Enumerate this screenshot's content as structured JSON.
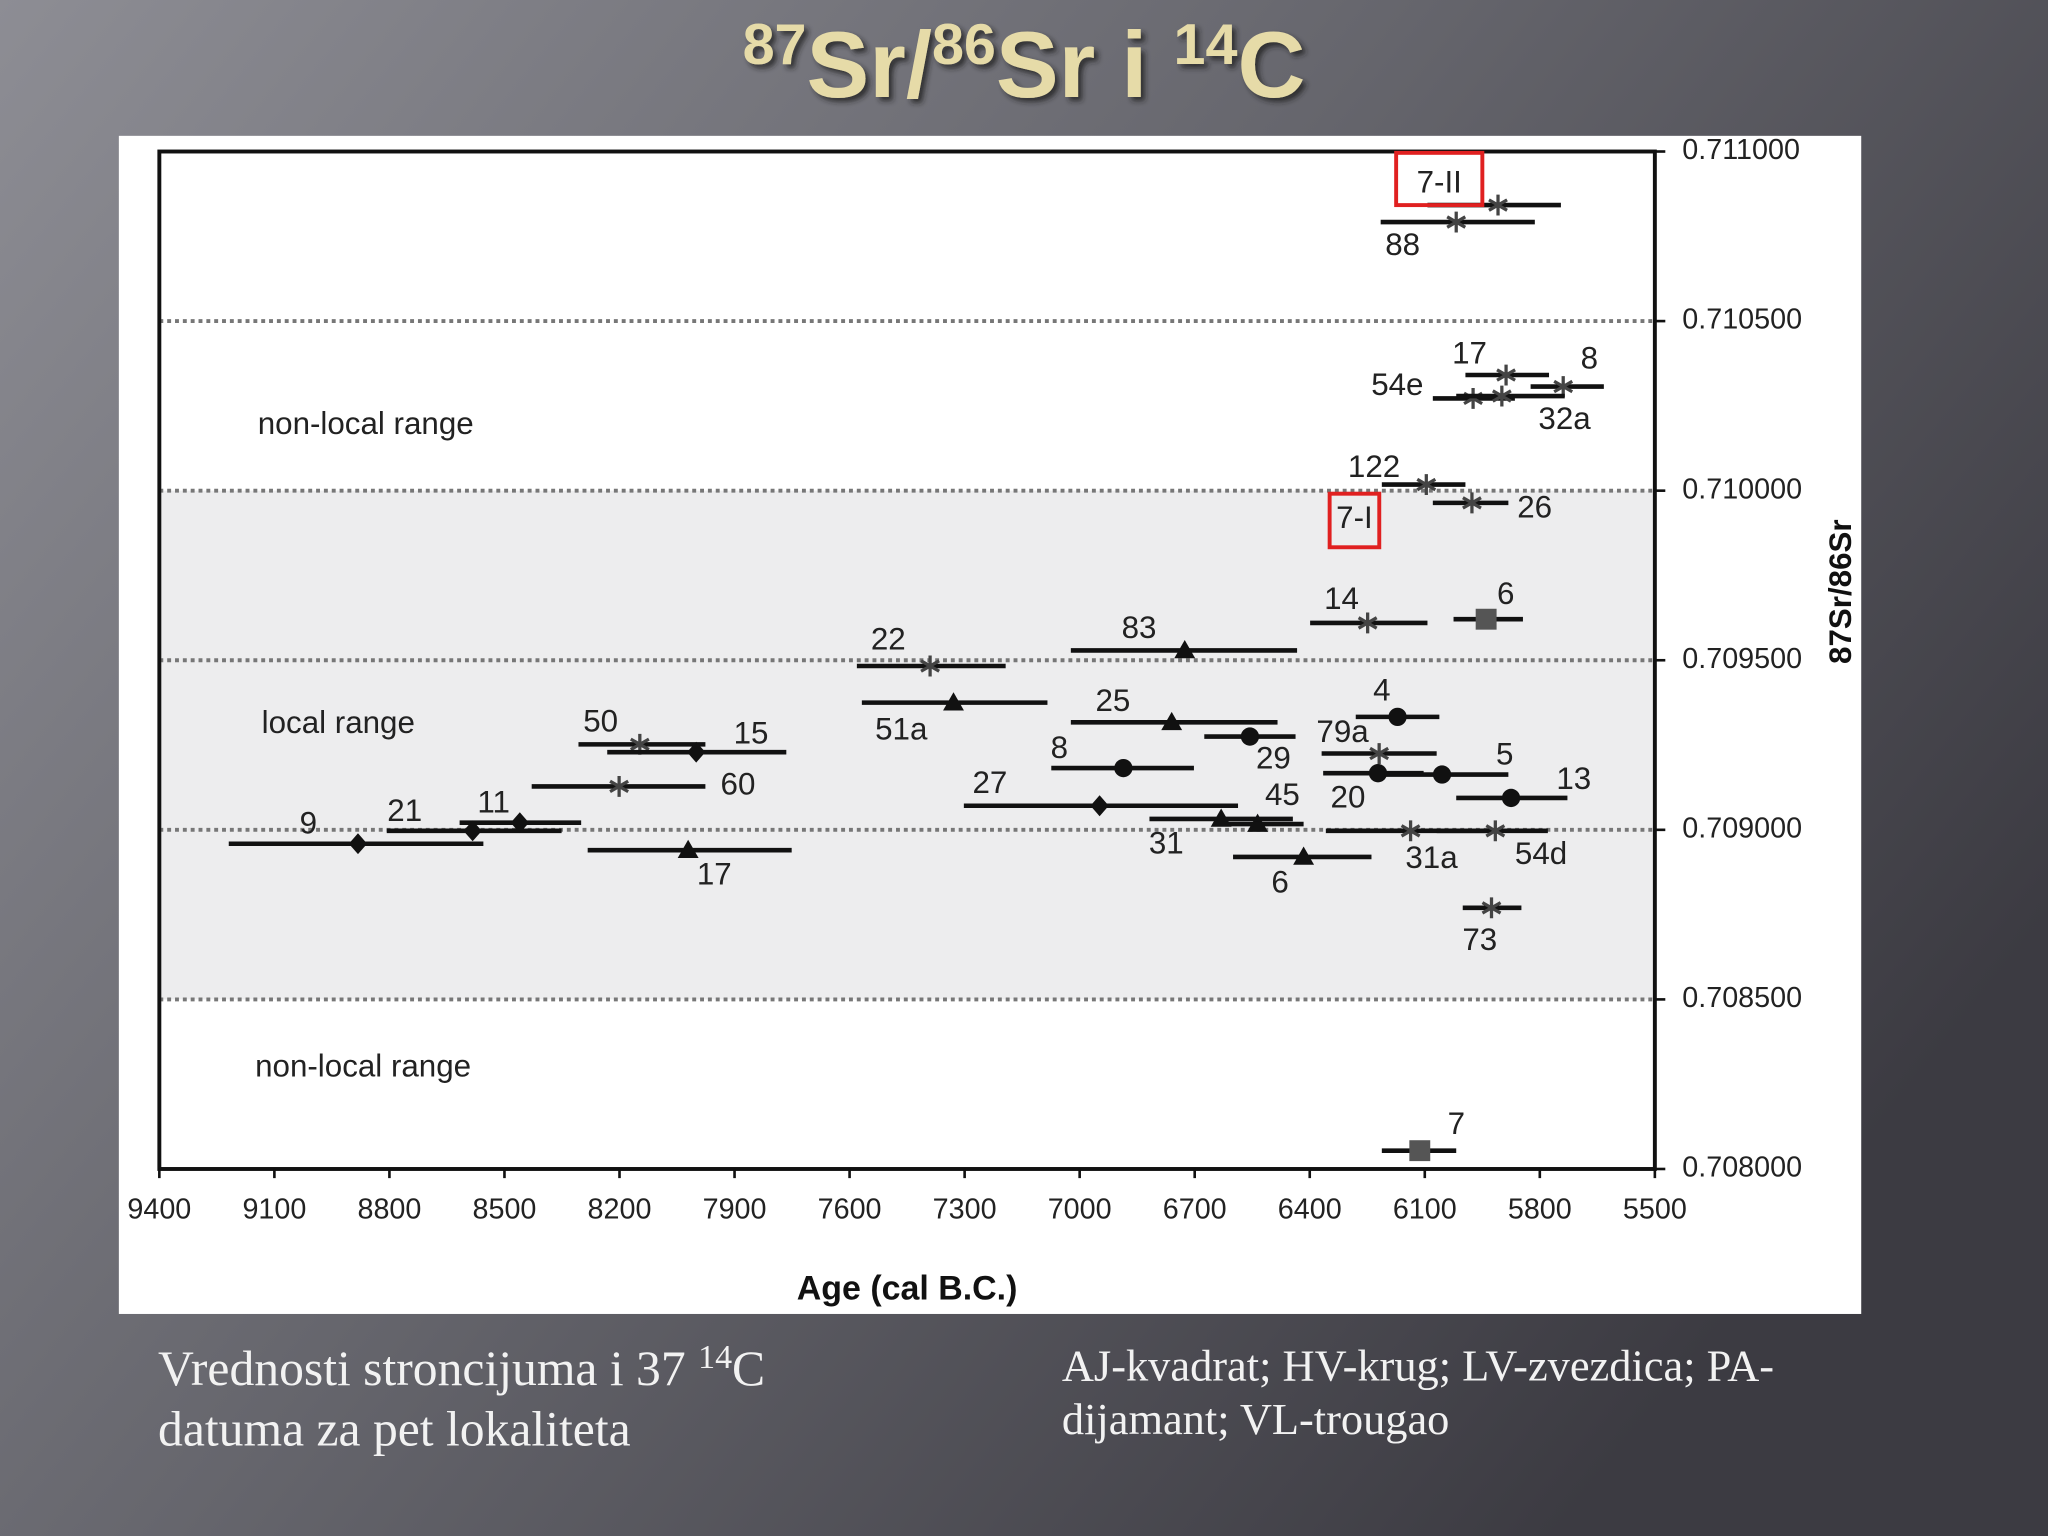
{
  "title": [
    "87",
    "Sr/",
    "86",
    "Sr i ",
    "14",
    "C"
  ],
  "caption_left": {
    "line1": [
      "Vrednosti stroncijuma i 37 ",
      "14",
      "C"
    ],
    "line2": "datuma za pet lokaliteta"
  },
  "caption_right": [
    "AJ-kvadrat; HV-krug; LV-zvezdica; PA-",
    "dijamant; VL-trougao"
  ],
  "chart_data": {
    "type": "scatter",
    "xlabel": "Age (cal B.C.)",
    "ylabel": "87Sr/86Sr",
    "xlim": [
      9400,
      5500
    ],
    "xticks": [
      9400,
      9100,
      8800,
      8500,
      8200,
      7900,
      7600,
      7300,
      7000,
      6700,
      6400,
      6100,
      5800,
      5500
    ],
    "ylim": [
      0.708,
      0.711
    ],
    "yticks": [
      {
        "value": 0.708,
        "label": "0.708000"
      },
      {
        "value": 0.7085,
        "label": "0.708500"
      },
      {
        "value": 0.709,
        "label": "0.709000"
      },
      {
        "value": 0.7095,
        "label": "0.709500"
      },
      {
        "value": 0.71,
        "label": "0.710000"
      },
      {
        "value": 0.7105,
        "label": "0.710500"
      },
      {
        "value": 0.711,
        "label": "0.711000"
      }
    ],
    "grid_lines": [
      0.7085,
      0.709,
      0.7095,
      0.71,
      0.7105
    ],
    "shaded_band": [
      0.7085,
      0.71
    ],
    "annotations": [
      {
        "text": "non-local range"
      },
      {
        "text": "local range"
      },
      {
        "text": "non-local range"
      },
      {
        "text": "7-I",
        "highlight": true
      }
    ],
    "points": [
      {
        "label": "7-II",
        "marker": "star",
        "x": 5909,
        "xrange": [
          6093,
          5745
        ],
        "y": 0.710842,
        "highlight": true
      },
      {
        "label": "88",
        "marker": "star",
        "x": 6018,
        "xrange": [
          6215,
          5813
        ],
        "y": 0.710792
      },
      {
        "label": "17",
        "marker": "star",
        "x": 5888,
        "xrange": [
          5994,
          5776
        ],
        "y": 0.710341
      },
      {
        "label": "8",
        "marker": "star",
        "x": 5739,
        "xrange": [
          5824,
          5633
        ],
        "y": 0.710307
      },
      {
        "label": "54e",
        "marker": "star",
        "x": 5974,
        "xrange": [
          6079,
          5865
        ],
        "y": 0.710272
      },
      {
        "label": "32a",
        "marker": "star",
        "x": 5899,
        "xrange": [
          6018,
          5735
        ],
        "y": 0.710279
      },
      {
        "label": "122",
        "marker": "star",
        "x": 6096,
        "xrange": [
          6212,
          5994
        ],
        "y": 0.710018
      },
      {
        "label": "26",
        "marker": "star",
        "x": 5977,
        "xrange": [
          6079,
          5882
        ],
        "y": 0.709964
      },
      {
        "label": "14",
        "marker": "star",
        "x": 6249,
        "xrange": [
          6399,
          6093
        ],
        "y": 0.70961
      },
      {
        "label": "6",
        "marker": "square",
        "x": 5940,
        "xrange": [
          6025,
          5844
        ],
        "y": 0.709621
      },
      {
        "label": "22",
        "marker": "star",
        "x": 7390,
        "xrange": [
          7581,
          7193
        ],
        "y": 0.709483
      },
      {
        "label": "83",
        "marker": "triangle",
        "x": 6726,
        "xrange": [
          7023,
          6433
        ],
        "y": 0.709529
      },
      {
        "label": "51a",
        "marker": "triangle",
        "x": 7329,
        "xrange": [
          7568,
          7084
        ],
        "y": 0.709375
      },
      {
        "label": "25",
        "marker": "triangle",
        "x": 6760,
        "xrange": [
          7023,
          6484
        ],
        "y": 0.709317
      },
      {
        "label": "4",
        "marker": "circle",
        "x": 6171,
        "xrange": [
          6280,
          6062
        ],
        "y": 0.709333
      },
      {
        "label": "29",
        "marker": "circle",
        "x": 6556,
        "xrange": [
          6675,
          6437
        ],
        "y": 0.709275
      },
      {
        "label": "79a",
        "marker": "star",
        "x": 6219,
        "xrange": [
          6369,
          6069
        ],
        "y": 0.709225
      },
      {
        "label": "8",
        "marker": "circle",
        "x": 6886,
        "xrange": [
          7074,
          6702
        ],
        "y": 0.709182
      },
      {
        "label": "20",
        "marker": "circle",
        "x": 6222,
        "xrange": [
          6365,
          6103
        ],
        "y": 0.709167
      },
      {
        "label": "5",
        "marker": "circle",
        "x": 6055,
        "xrange": [
          6205,
          5882
        ],
        "y": 0.709163
      },
      {
        "label": "13",
        "marker": "circle",
        "x": 5875,
        "xrange": [
          6018,
          5728
        ],
        "y": 0.709094
      },
      {
        "label": "27",
        "marker": "diamond",
        "x": 6948,
        "xrange": [
          7302,
          6587
        ],
        "y": 0.709071
      },
      {
        "label": "45",
        "marker": "triangle",
        "x": 6536,
        "xrange": [
          6648,
          6416
        ],
        "y": 0.709017
      },
      {
        "label": "31",
        "marker": "triangle",
        "x": 6631,
        "xrange": [
          6818,
          6444
        ],
        "y": 0.709032
      },
      {
        "label": "31a",
        "marker": "star",
        "x": 6137,
        "xrange": [
          6358,
          5933
        ],
        "y": 0.708997
      },
      {
        "label": "54d",
        "marker": "star",
        "x": 5916,
        "xrange": [
          6069,
          5779
        ],
        "y": 0.708997
      },
      {
        "label": "6",
        "marker": "triangle",
        "x": 6416,
        "xrange": [
          6600,
          6239
        ],
        "y": 0.70892
      },
      {
        "label": "73",
        "marker": "star",
        "x": 5926,
        "xrange": [
          6001,
          5848
        ],
        "y": 0.70877
      },
      {
        "label": "7",
        "marker": "square",
        "x": 6113,
        "xrange": [
          6212,
          6018
        ],
        "y": 0.708054
      },
      {
        "label": "50",
        "marker": "star",
        "x": 8147,
        "xrange": [
          8307,
          7976
        ],
        "y": 0.709252
      },
      {
        "label": "15",
        "marker": "diamond",
        "x": 8000,
        "xrange": [
          8232,
          7765
        ],
        "y": 0.709229
      },
      {
        "label": "60",
        "marker": "star",
        "x": 8201,
        "xrange": [
          8429,
          7976
        ],
        "y": 0.709128
      },
      {
        "label": "11",
        "marker": "diamond",
        "x": 8460,
        "xrange": [
          8617,
          8300
        ],
        "y": 0.709021
      },
      {
        "label": "21",
        "marker": "diamond",
        "x": 8583,
        "xrange": [
          8807,
          8351
        ],
        "y": 0.708997
      },
      {
        "label": "9",
        "marker": "diamond",
        "x": 8882,
        "xrange": [
          9219,
          8555
        ],
        "y": 0.708959
      },
      {
        "label": "17",
        "marker": "triangle",
        "x": 8021,
        "xrange": [
          8283,
          7751
        ],
        "y": 0.70894
      }
    ]
  }
}
